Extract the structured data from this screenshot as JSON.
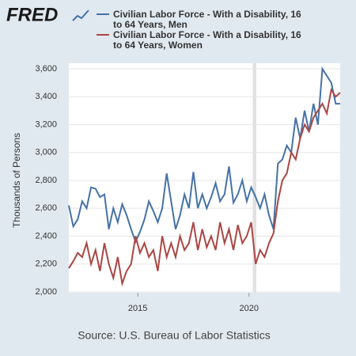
{
  "chart_data": {
    "type": "line",
    "logo": "FRED",
    "ylabel": "Thousands of Persons",
    "source": "Source: U.S. Bureau of Labor Statistics",
    "x": [
      2011.9,
      2012.1,
      2012.3,
      2012.5,
      2012.7,
      2012.9,
      2013.1,
      2013.3,
      2013.5,
      2013.7,
      2013.9,
      2014.1,
      2014.3,
      2014.5,
      2014.7,
      2014.9,
      2015.1,
      2015.3,
      2015.5,
      2015.7,
      2015.9,
      2016.1,
      2016.3,
      2016.5,
      2016.7,
      2016.9,
      2017.1,
      2017.3,
      2017.5,
      2017.7,
      2017.9,
      2018.1,
      2018.3,
      2018.5,
      2018.7,
      2018.9,
      2019.1,
      2019.3,
      2019.5,
      2019.7,
      2019.9,
      2020.1,
      2020.3,
      2020.5,
      2020.7,
      2020.9,
      2021.1,
      2021.3,
      2021.5,
      2021.7,
      2021.9,
      2022.1,
      2022.3,
      2022.5,
      2022.7,
      2022.9,
      2023.1,
      2023.3,
      2023.5,
      2023.7,
      2023.9,
      2024.1
    ],
    "series": [
      {
        "name": "Civilian Labor Force - With a Disability, 16 to 64 Years, Men",
        "color": "#4572a7",
        "values": [
          2620,
          2470,
          2520,
          2650,
          2600,
          2750,
          2740,
          2680,
          2700,
          2450,
          2600,
          2500,
          2630,
          2550,
          2450,
          2360,
          2430,
          2520,
          2650,
          2580,
          2500,
          2600,
          2850,
          2650,
          2450,
          2550,
          2700,
          2600,
          2860,
          2600,
          2700,
          2600,
          2680,
          2780,
          2650,
          2700,
          2900,
          2640,
          2700,
          2800,
          2650,
          2750,
          2680,
          2600,
          2700,
          2550,
          2450,
          2920,
          2950,
          3050,
          3000,
          3250,
          3100,
          3300,
          3150,
          3350,
          3200,
          3600,
          3550,
          3500,
          3350,
          3350
        ]
      },
      {
        "name": "Civilian Labor Force - With a Disability, 16 to 64 Years, Women",
        "color": "#aa4643",
        "values": [
          2170,
          2220,
          2280,
          2250,
          2350,
          2200,
          2300,
          2150,
          2350,
          2200,
          2100,
          2250,
          2060,
          2150,
          2200,
          2400,
          2280,
          2350,
          2250,
          2300,
          2150,
          2400,
          2250,
          2350,
          2250,
          2400,
          2300,
          2350,
          2500,
          2300,
          2450,
          2320,
          2400,
          2300,
          2500,
          2350,
          2450,
          2300,
          2480,
          2350,
          2400,
          2500,
          2200,
          2300,
          2250,
          2350,
          2420,
          2650,
          2800,
          2850,
          3000,
          2950,
          3100,
          3200,
          3150,
          3250,
          3300,
          3350,
          3280,
          3450,
          3400,
          3430
        ]
      }
    ],
    "xlim": [
      2011.9,
      2024.1
    ],
    "xticks": [
      2015,
      2020
    ],
    "ylim": [
      2000,
      3600
    ],
    "yticks": [
      {
        "value": 2000,
        "label": "2,000"
      },
      {
        "value": 2200,
        "label": "2,200"
      },
      {
        "value": 2400,
        "label": "2,400"
      },
      {
        "value": 2600,
        "label": "2,600"
      },
      {
        "value": 2800,
        "label": "2,800"
      },
      {
        "value": 3000,
        "label": "3,000"
      },
      {
        "value": 3200,
        "label": "3,200"
      },
      {
        "value": 3400,
        "label": "3,400"
      },
      {
        "value": 3600,
        "label": "3,600"
      }
    ],
    "recession": [
      2020.17,
      2020.33
    ],
    "grid": true
  }
}
